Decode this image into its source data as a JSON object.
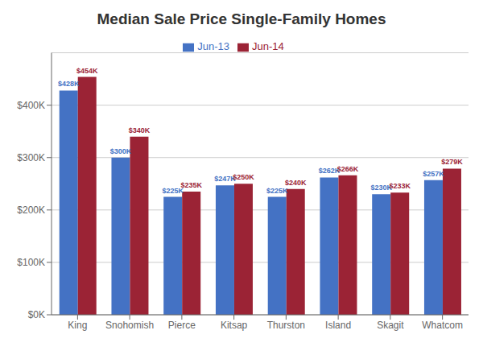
{
  "chart_data": {
    "type": "bar",
    "title": "Median Sale Price Single-Family Homes",
    "categories": [
      "King",
      "Snohomish",
      "Pierce",
      "Kitsap",
      "Thurston",
      "Island",
      "Skagit",
      "Whatcom"
    ],
    "series": [
      {
        "name": "Jun-13",
        "color": "#4472C4",
        "values": [
          428000,
          300000,
          225000,
          247000,
          225000,
          262000,
          230000,
          257000
        ],
        "value_labels": [
          "$428K",
          "$300K",
          "$225K",
          "$247K",
          "$225K",
          "$262K",
          "$230K",
          "$257K"
        ]
      },
      {
        "name": "Jun-14",
        "color": "#9B2335",
        "values": [
          454000,
          340000,
          235000,
          250000,
          240000,
          266000,
          233000,
          279000
        ],
        "value_labels": [
          "$454K",
          "$340K",
          "$235K",
          "$250K",
          "$240K",
          "$266K",
          "$233K",
          "$279K"
        ]
      }
    ],
    "ylim": [
      0,
      500000
    ],
    "yticks": [
      {
        "value": 0,
        "label": "$0K"
      },
      {
        "value": 100000,
        "label": "$100K"
      },
      {
        "value": 200000,
        "label": "$200K"
      },
      {
        "value": 300000,
        "label": "$300K"
      },
      {
        "value": 400000,
        "label": "$400K"
      }
    ],
    "grid": true,
    "legend": "top",
    "data_labels": true
  }
}
